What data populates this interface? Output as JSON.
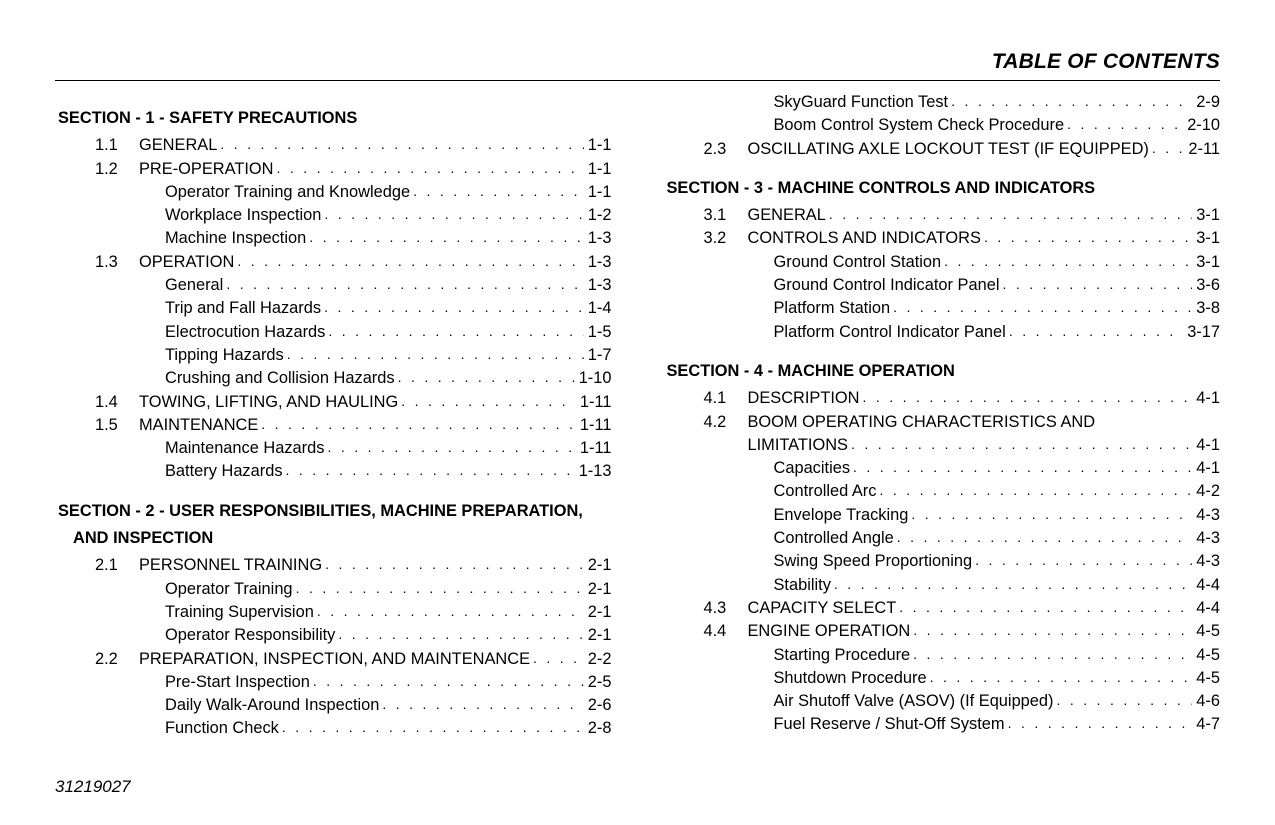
{
  "header_title": "TABLE OF CONTENTS",
  "footer_docnum": "31219027",
  "sections": [
    {
      "title": "SECTION - 1 - SAFETY PRECAUTIONS",
      "entries": [
        {
          "num": "1.1",
          "label": "GENERAL",
          "page": "1-1"
        },
        {
          "num": "1.2",
          "label": "PRE-OPERATION",
          "page": "1-1"
        },
        {
          "sub": true,
          "label": "Operator Training and Knowledge",
          "page": "1-1"
        },
        {
          "sub": true,
          "label": "Workplace Inspection",
          "page": "1-2"
        },
        {
          "sub": true,
          "label": "Machine Inspection",
          "page": "1-3"
        },
        {
          "num": "1.3",
          "label": "OPERATION",
          "page": "1-3"
        },
        {
          "sub": true,
          "label": "General",
          "page": "1-3"
        },
        {
          "sub": true,
          "label": "Trip and Fall Hazards",
          "page": "1-4"
        },
        {
          "sub": true,
          "label": "Electrocution Hazards",
          "page": "1-5"
        },
        {
          "sub": true,
          "label": "Tipping Hazards",
          "page": "1-7"
        },
        {
          "sub": true,
          "label": "Crushing and Collision Hazards",
          "page": "1-10"
        },
        {
          "num": "1.4",
          "label": "TOWING, LIFTING, AND HAULING",
          "page": "1-11"
        },
        {
          "num": "1.5",
          "label": "MAINTENANCE",
          "page": "1-11"
        },
        {
          "sub": true,
          "label": "Maintenance Hazards",
          "page": "1-11"
        },
        {
          "sub": true,
          "label": "Battery Hazards",
          "page": "1-13"
        }
      ]
    },
    {
      "title": "SECTION - 2 - USER RESPONSIBILITIES, MACHINE PREPARATION,",
      "title_cont": "AND INSPECTION",
      "entries": [
        {
          "num": "2.1",
          "label": "PERSONNEL TRAINING",
          "page": "2-1"
        },
        {
          "sub": true,
          "label": "Operator Training",
          "page": "2-1"
        },
        {
          "sub": true,
          "label": "Training Supervision",
          "page": "2-1"
        },
        {
          "sub": true,
          "label": "Operator Responsibility",
          "page": "2-1"
        },
        {
          "num": "2.2",
          "label": "PREPARATION, INSPECTION, AND MAINTENANCE",
          "page": "2-2"
        },
        {
          "sub": true,
          "label": "Pre-Start Inspection",
          "page": "2-5"
        },
        {
          "sub": true,
          "label": "Daily Walk-Around Inspection",
          "page": "2-6"
        },
        {
          "sub": true,
          "label": "Function Check",
          "page": "2-8"
        },
        {
          "sub": true,
          "label": "SkyGuard Function Test",
          "page": "2-9"
        },
        {
          "sub": true,
          "label": "Boom Control System Check Procedure",
          "page": "2-10"
        },
        {
          "num": "2.3",
          "label": "OSCILLATING AXLE LOCKOUT TEST (IF EQUIPPED)",
          "page": "2-11"
        }
      ]
    },
    {
      "title": "SECTION - 3 - MACHINE CONTROLS AND INDICATORS",
      "entries": [
        {
          "num": "3.1",
          "label": "GENERAL",
          "page": "3-1"
        },
        {
          "num": "3.2",
          "label": "CONTROLS AND INDICATORS",
          "page": "3-1"
        },
        {
          "sub": true,
          "label": "Ground Control Station",
          "page": "3-1"
        },
        {
          "sub": true,
          "label": "Ground Control Indicator Panel",
          "page": "3-6"
        },
        {
          "sub": true,
          "label": "Platform Station",
          "page": "3-8"
        },
        {
          "sub": true,
          "label": "Platform Control Indicator Panel",
          "page": "3-17"
        }
      ]
    },
    {
      "title": "SECTION - 4 - MACHINE OPERATION",
      "entries": [
        {
          "num": "4.1",
          "label": "DESCRIPTION",
          "page": "4-1"
        },
        {
          "num": "4.2",
          "label_wrap1": "BOOM OPERATING CHARACTERISTICS AND",
          "label_wrap2": "LIMITATIONS",
          "page": "4-1",
          "wrap": true
        },
        {
          "sub": true,
          "label": "Capacities",
          "page": "4-1"
        },
        {
          "sub": true,
          "label": "Controlled Arc",
          "page": "4-2"
        },
        {
          "sub": true,
          "label": "Envelope Tracking",
          "page": "4-3"
        },
        {
          "sub": true,
          "label": "Controlled Angle",
          "page": "4-3"
        },
        {
          "sub": true,
          "label": "Swing Speed Proportioning",
          "page": "4-3"
        },
        {
          "sub": true,
          "label": "Stability",
          "page": "4-4"
        },
        {
          "num": "4.3",
          "label": "CAPACITY SELECT",
          "page": "4-4"
        },
        {
          "num": "4.4",
          "label": "ENGINE OPERATION",
          "page": "4-5"
        },
        {
          "sub": true,
          "label": "Starting Procedure",
          "page": "4-5"
        },
        {
          "sub": true,
          "label": "Shutdown Procedure",
          "page": "4-5"
        },
        {
          "sub": true,
          "label": "Air Shutoff Valve (ASOV) (If Equipped)",
          "page": "4-6"
        },
        {
          "sub": true,
          "label": "Fuel Reserve / Shut-Off System",
          "page": "4-7"
        }
      ]
    }
  ]
}
